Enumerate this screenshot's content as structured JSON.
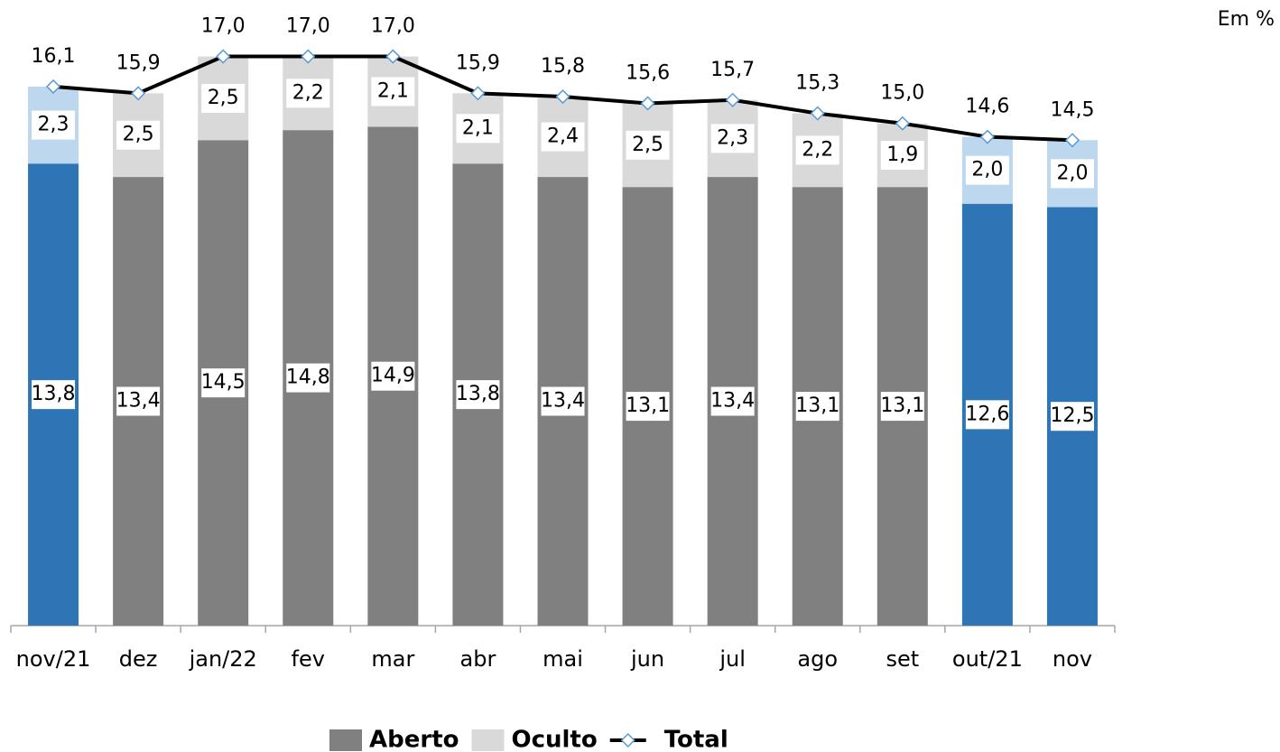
{
  "chart_data": {
    "type": "stacked-bar-line",
    "note": "Em %",
    "categories": [
      "nov/21",
      "dez",
      "jan/22",
      "fev",
      "mar",
      "abr",
      "mai",
      "jun",
      "jul",
      "ago",
      "set",
      "out/21",
      "nov"
    ],
    "ylim": [
      0,
      17.5
    ],
    "series": [
      {
        "name": "Aberto",
        "type": "bar",
        "color": "#808080",
        "colors": [
          "#2e75b6",
          "#808080",
          "#808080",
          "#808080",
          "#808080",
          "#808080",
          "#808080",
          "#808080",
          "#808080",
          "#808080",
          "#808080",
          "#2e75b6",
          "#2e75b6"
        ],
        "values": [
          13.8,
          13.4,
          14.5,
          14.8,
          14.9,
          13.8,
          13.4,
          13.1,
          13.4,
          13.1,
          13.1,
          12.6,
          12.5
        ],
        "value_labels": [
          "13,8",
          "13,4",
          "14,5",
          "14,8",
          "14,9",
          "13,8",
          "13,4",
          "13,1",
          "13,4",
          "13,1",
          "13,1",
          "12,6",
          "12,5"
        ]
      },
      {
        "name": "Oculto",
        "type": "bar",
        "color": "#d9d9d9",
        "colors": [
          "#bdd7ee",
          "#d9d9d9",
          "#d9d9d9",
          "#d9d9d9",
          "#d9d9d9",
          "#d9d9d9",
          "#d9d9d9",
          "#d9d9d9",
          "#d9d9d9",
          "#d9d9d9",
          "#d9d9d9",
          "#bdd7ee",
          "#bdd7ee"
        ],
        "values": [
          2.3,
          2.5,
          2.5,
          2.2,
          2.1,
          2.1,
          2.4,
          2.5,
          2.3,
          2.2,
          1.9,
          2.0,
          2.0
        ],
        "value_labels": [
          "2,3",
          "2,5",
          "2,5",
          "2,2",
          "2,1",
          "2,1",
          "2,4",
          "2,5",
          "2,3",
          "2,2",
          "1,9",
          "2,0",
          "2,0"
        ]
      },
      {
        "name": "Total",
        "type": "line",
        "color": "#000000",
        "values": [
          16.1,
          15.9,
          17.0,
          17.0,
          17.0,
          15.9,
          15.8,
          15.6,
          15.7,
          15.3,
          15.0,
          14.6,
          14.5
        ],
        "value_labels": [
          "16,1",
          "15,9",
          "17,0",
          "17,0",
          "17,0",
          "15,9",
          "15,8",
          "15,6",
          "15,7",
          "15,3",
          "15,0",
          "14,6",
          "14,5"
        ]
      }
    ]
  }
}
